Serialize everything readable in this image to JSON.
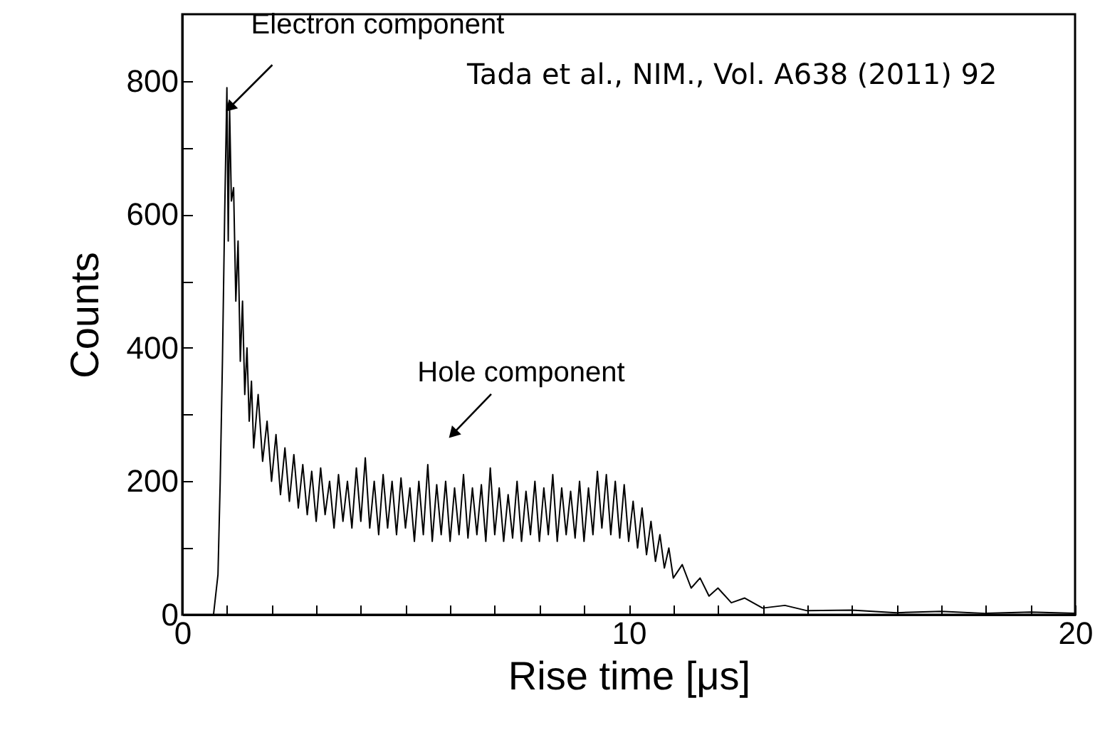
{
  "chart_data": {
    "type": "line",
    "xlabel": "Rise time [μs]",
    "ylabel": "Counts",
    "xlim": [
      0,
      20
    ],
    "ylim": [
      0,
      900
    ],
    "xticks": [
      0,
      {
        "value": 1,
        "label": null
      },
      {
        "value": 2,
        "label": null
      },
      {
        "value": 3,
        "label": null
      },
      {
        "value": 4,
        "label": null
      },
      {
        "value": 5,
        "label": null
      },
      {
        "value": 6,
        "label": null
      },
      {
        "value": 7,
        "label": null
      },
      {
        "value": 8,
        "label": null
      },
      {
        "value": 9,
        "label": null
      },
      10,
      {
        "value": 11,
        "label": null
      },
      {
        "value": 12,
        "label": null
      },
      {
        "value": 13,
        "label": null
      },
      {
        "value": 14,
        "label": null
      },
      {
        "value": 15,
        "label": null
      },
      {
        "value": 16,
        "label": null
      },
      {
        "value": 17,
        "label": null
      },
      {
        "value": 18,
        "label": null
      },
      {
        "value": 19,
        "label": null
      },
      20
    ],
    "yticks": [
      0,
      {
        "value": 100,
        "label": null
      },
      200,
      {
        "value": 300,
        "label": null
      },
      400,
      {
        "value": 500,
        "label": null
      },
      600,
      {
        "value": 700,
        "label": null
      },
      800
    ],
    "grid": false,
    "marker": "none",
    "line_style": "solid",
    "x": [
      0.7,
      0.8,
      0.85,
      0.9,
      0.95,
      1.0,
      1.03,
      1.06,
      1.1,
      1.15,
      1.2,
      1.25,
      1.3,
      1.35,
      1.4,
      1.45,
      1.5,
      1.55,
      1.6,
      1.7,
      1.8,
      1.9,
      2.0,
      2.1,
      2.2,
      2.3,
      2.4,
      2.5,
      2.6,
      2.7,
      2.8,
      2.9,
      3.0,
      3.1,
      3.2,
      3.3,
      3.4,
      3.5,
      3.6,
      3.7,
      3.8,
      3.9,
      4.0,
      4.1,
      4.2,
      4.3,
      4.4,
      4.5,
      4.6,
      4.7,
      4.8,
      4.9,
      5.0,
      5.1,
      5.2,
      5.3,
      5.4,
      5.5,
      5.6,
      5.7,
      5.8,
      5.9,
      6.0,
      6.1,
      6.2,
      6.3,
      6.4,
      6.5,
      6.6,
      6.7,
      6.8,
      6.9,
      7.0,
      7.1,
      7.2,
      7.3,
      7.4,
      7.5,
      7.6,
      7.7,
      7.8,
      7.9,
      8.0,
      8.1,
      8.2,
      8.3,
      8.4,
      8.5,
      8.6,
      8.7,
      8.8,
      8.9,
      9.0,
      9.1,
      9.2,
      9.3,
      9.4,
      9.5,
      9.6,
      9.7,
      9.8,
      9.9,
      10.0,
      10.1,
      10.2,
      10.3,
      10.4,
      10.5,
      10.6,
      10.7,
      10.8,
      10.9,
      11.0,
      11.2,
      11.4,
      11.6,
      11.8,
      12.0,
      12.3,
      12.6,
      13.0,
      13.5,
      14,
      15,
      16,
      17,
      18,
      19,
      20
    ],
    "series": [
      {
        "color": "#000000",
        "values": [
          0,
          60,
          200,
          380,
          600,
          790,
          560,
          760,
          620,
          640,
          470,
          560,
          380,
          470,
          330,
          400,
          290,
          350,
          250,
          330,
          230,
          290,
          200,
          270,
          180,
          250,
          170,
          240,
          160,
          225,
          150,
          215,
          140,
          220,
          150,
          200,
          130,
          210,
          140,
          200,
          130,
          220,
          140,
          235,
          130,
          200,
          120,
          210,
          130,
          200,
          120,
          205,
          130,
          190,
          110,
          200,
          120,
          225,
          110,
          195,
          120,
          200,
          110,
          190,
          120,
          210,
          115,
          190,
          120,
          195,
          110,
          220,
          120,
          190,
          110,
          180,
          115,
          200,
          110,
          185,
          120,
          200,
          110,
          190,
          120,
          210,
          110,
          190,
          120,
          185,
          115,
          200,
          110,
          190,
          120,
          215,
          130,
          210,
          120,
          200,
          115,
          195,
          110,
          170,
          100,
          160,
          90,
          140,
          80,
          120,
          70,
          100,
          55,
          75,
          40,
          55,
          28,
          40,
          18,
          25,
          10,
          14,
          6,
          7,
          3,
          5,
          2,
          4,
          2
        ]
      }
    ],
    "annotations": [
      {
        "text": "Electron component",
        "x": 1.06,
        "y": 760
      },
      {
        "text": "Hole component",
        "x": 6.06,
        "y": 271
      },
      "Tada et al., NIM., Vol. A638 (2011) 92"
    ]
  }
}
